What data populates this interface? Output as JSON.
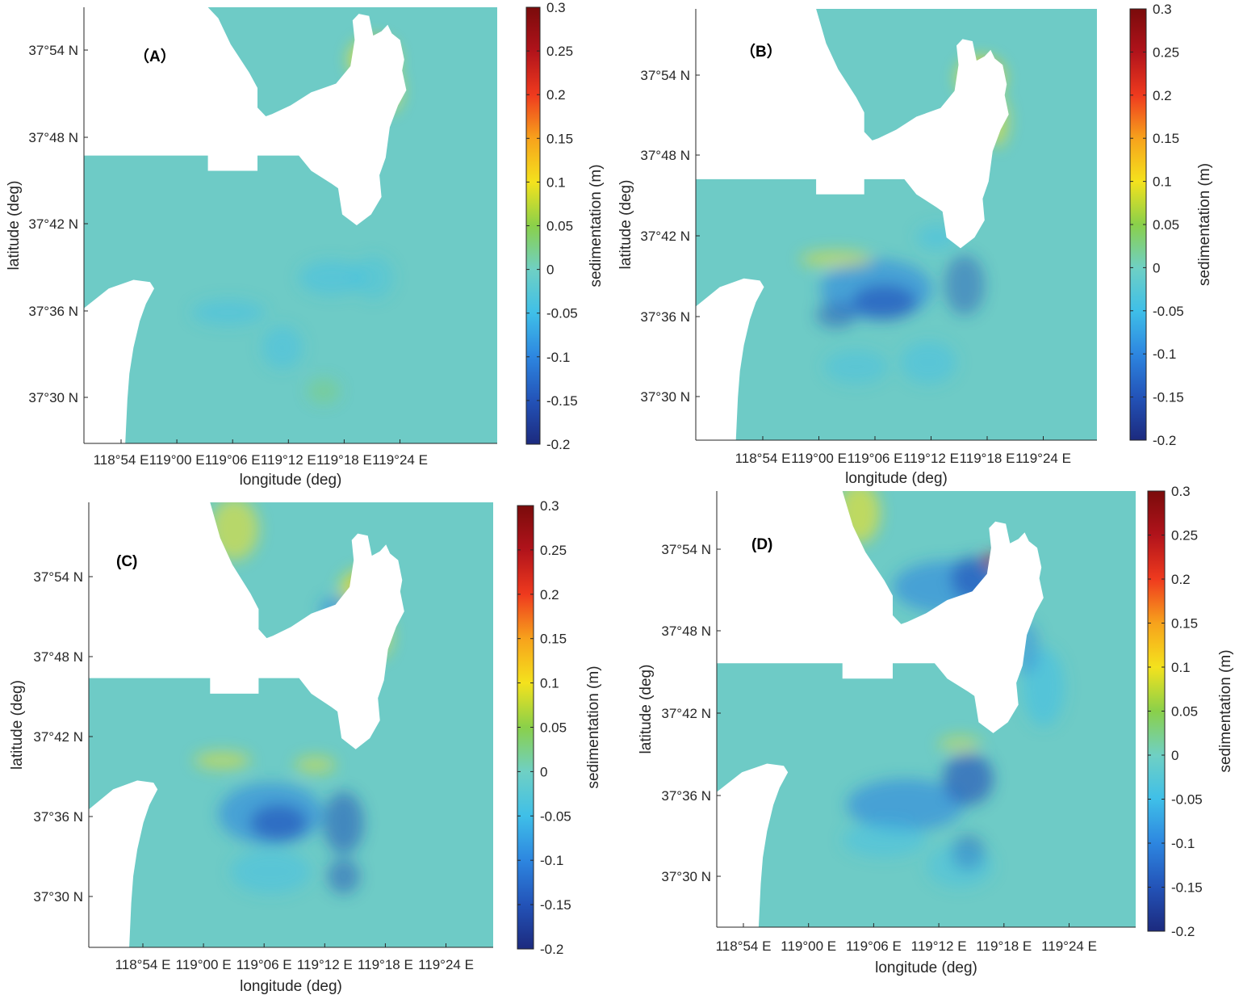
{
  "figure": {
    "colormap": [
      "#1c2a7e",
      "#2353b8",
      "#2d86e0",
      "#3fbfe8",
      "#6fd0c4",
      "#8ad04a",
      "#f4e21d",
      "#f7a21c",
      "#ef3a1e",
      "#b1131b",
      "#7a0b0b"
    ],
    "sea_base_color": "#6ecbc6"
  },
  "panels": [
    {
      "id": "A",
      "label": "（A）",
      "xlabel": "longitude (deg)",
      "ylabel": "latitude (deg)",
      "x_ticks": [
        "118°54 E",
        "119°00 E",
        "119°06 E",
        "119°12 E",
        "119°18 E",
        "119°24 E"
      ],
      "y_ticks": [
        "37°54 N",
        "37°48 N",
        "37°42 N",
        "37°36 N",
        "37°30 N"
      ],
      "colorbar": {
        "label": "sedimentation (m)",
        "ticks": [
          "0.3",
          "0.25",
          "0.2",
          "0.15",
          "0.1",
          "0.05",
          "0",
          "-0.05",
          "-0.1",
          "-0.15",
          "-0.2"
        ],
        "min": -0.2,
        "max": 0.3
      },
      "lon_range": [
        "118°51 E",
        "119°27 E"
      ],
      "lat_range": [
        "37°27 N",
        "37°57 N"
      ]
    },
    {
      "id": "B",
      "label": "（B）",
      "xlabel": "longitude (deg)",
      "ylabel": "latitude (deg)",
      "x_ticks": [
        "118°54 E",
        "119°00 E",
        "119°06 E",
        "119°12 E",
        "119°18 E",
        "119°24 E"
      ],
      "y_ticks": [
        "37°54 N",
        "37°48 N",
        "37°42 N",
        "37°36 N",
        "37°30 N"
      ],
      "colorbar": {
        "label": "sedimentation (m)",
        "ticks": [
          "0.3",
          "0.25",
          "0.2",
          "0.15",
          "0.1",
          "0.05",
          "0",
          "-0.05",
          "-0.1",
          "-0.15",
          "-0.2"
        ],
        "min": -0.2,
        "max": 0.3
      },
      "lon_range": [
        "118°51 E",
        "119°27 E"
      ],
      "lat_range": [
        "37°27 N",
        "37°57 N"
      ]
    },
    {
      "id": "C",
      "label": "(C)",
      "xlabel": "longitude (deg)",
      "ylabel": "latitude (deg)",
      "x_ticks": [
        "118°54 E",
        "119°00 E",
        "119°06 E",
        "119°12 E",
        "119°18 E",
        "119°24 E"
      ],
      "y_ticks": [
        "37°54 N",
        "37°48 N",
        "37°42 N",
        "37°36 N",
        "37°30 N"
      ],
      "colorbar": {
        "label": "sedimentation (m)",
        "ticks": [
          "0.3",
          "0.25",
          "0.2",
          "0.15",
          "0.1",
          "0.05",
          "0",
          "-0.05",
          "-0.1",
          "-0.15",
          "-0.2"
        ],
        "min": -0.2,
        "max": 0.3
      },
      "lon_range": [
        "118°51 E",
        "119°27 E"
      ],
      "lat_range": [
        "37°27 N",
        "37°57 N"
      ]
    },
    {
      "id": "D",
      "label": "(D)",
      "xlabel": "longitude (deg)",
      "ylabel": "latitude (deg)",
      "x_ticks": [
        "118°54 E",
        "119°00 E",
        "119°06 E",
        "119°12 E",
        "119°18 E",
        "119°24 E"
      ],
      "y_ticks": [
        "37°54 N",
        "37°48 N",
        "37°42 N",
        "37°36 N",
        "37°30 N"
      ],
      "colorbar": {
        "label": "sedimentation (m)",
        "ticks": [
          "0.3",
          "0.25",
          "0.2",
          "0.15",
          "0.1",
          "0.05",
          "0",
          "-0.05",
          "-0.1",
          "-0.15",
          "-0.2"
        ],
        "min": -0.2,
        "max": 0.3
      },
      "lon_range": [
        "118°51 E",
        "119°27 E"
      ],
      "lat_range": [
        "37°27 N",
        "37°57 N"
      ]
    }
  ]
}
